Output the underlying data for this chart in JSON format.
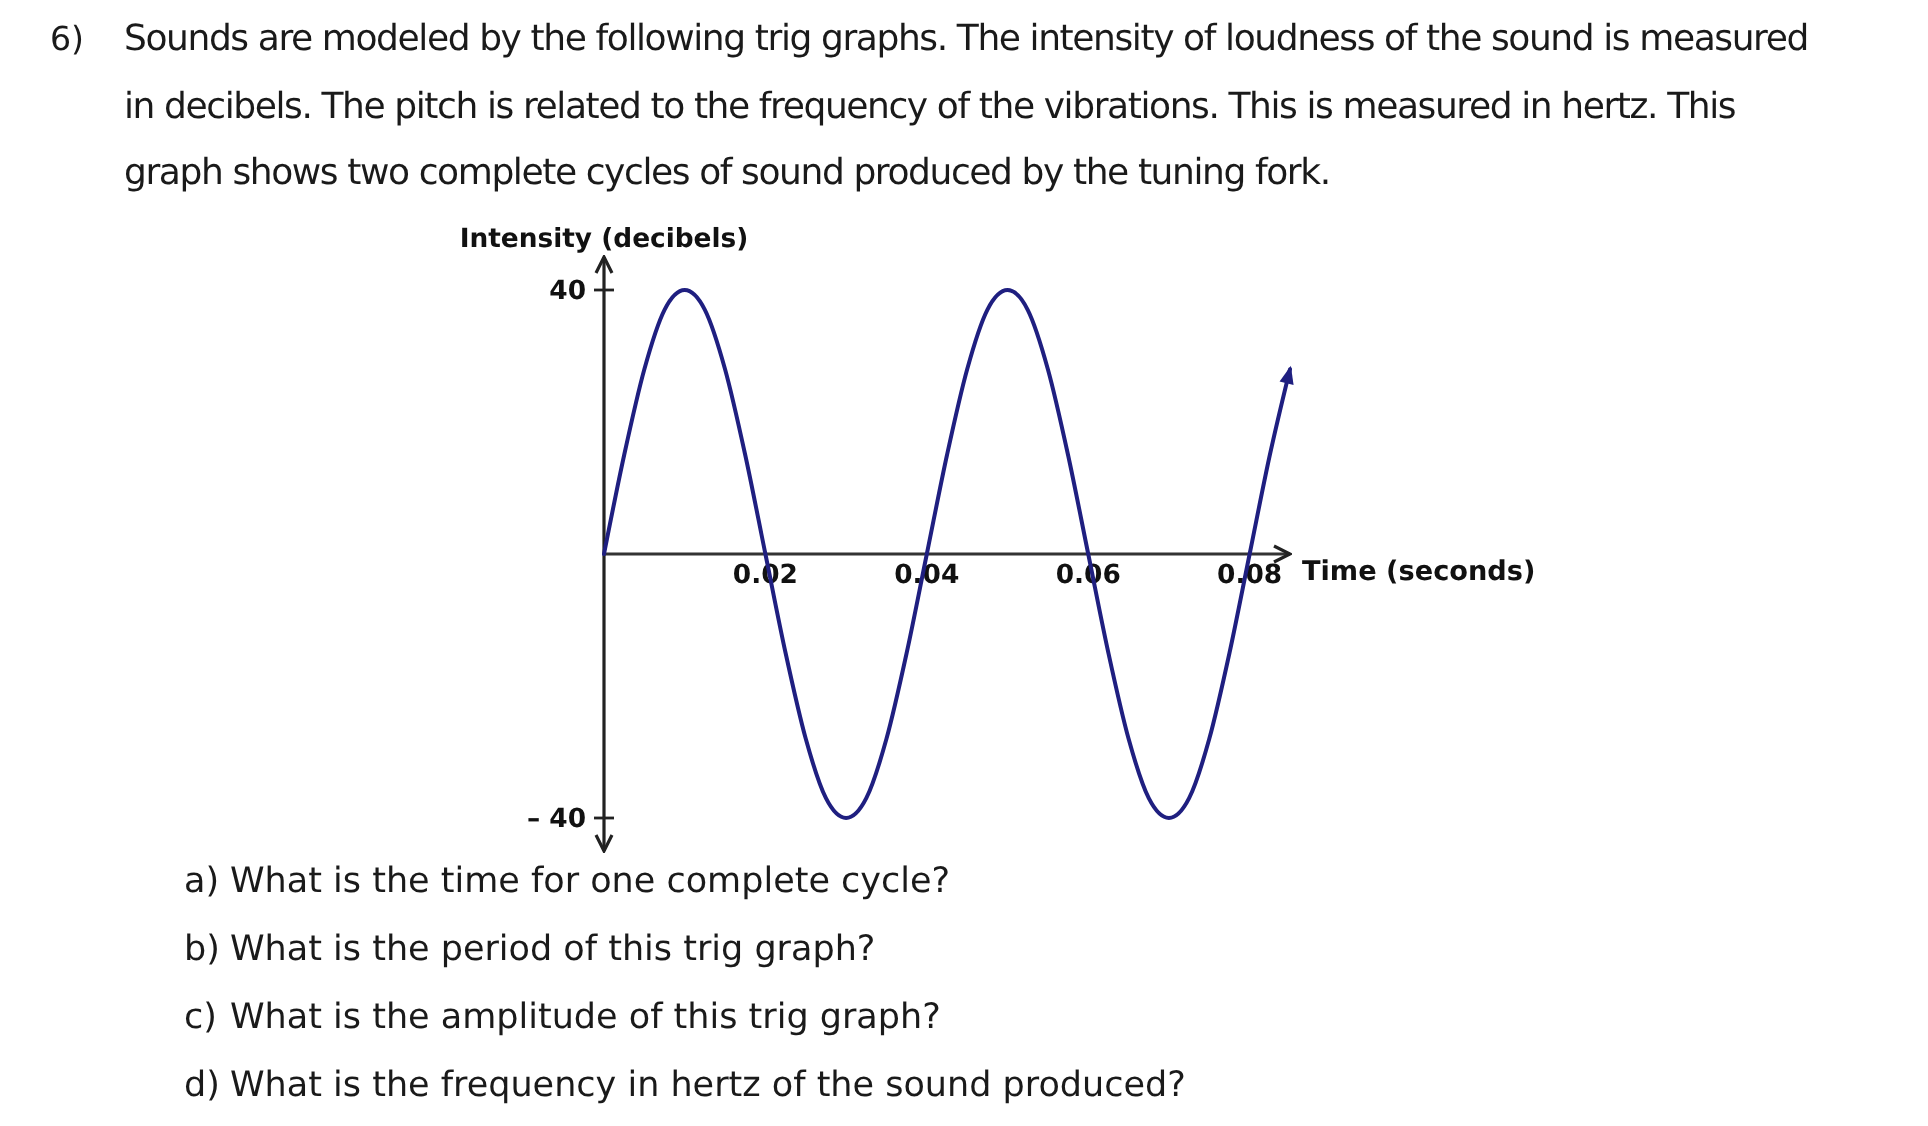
{
  "chart_data": {
    "type": "line",
    "title": "6) Sounds are modeled by the following trig graphs. The intensity of loudness of the sound is measured in decibels. The pitch is related to the frequency of the vibrations. This is measured in hertz. This graph shows two complete cycles of sound produced by the tuning fork.",
    "xlabel": "Time (seconds)",
    "ylabel": "Intensity (decibels)",
    "annotations": [
      "a) What is the time for one complete cycle?",
      "b) What is the period of this trig graph?",
      "c) What is the amplitude of this trig graph?",
      "d) What is the frequency in hertz of the sound produced?"
    ],
    "x": [
      0,
      0.0025,
      0.005,
      0.0075,
      0.01,
      0.0125,
      0.015,
      0.0175,
      0.02,
      0.0225,
      0.025,
      0.0275,
      0.03,
      0.0325,
      0.035,
      0.0375,
      0.04,
      0.0425,
      0.045,
      0.0475,
      0.05,
      0.0525,
      0.055,
      0.0575,
      0.06,
      0.0625,
      0.065,
      0.0675,
      0.07,
      0.0725,
      0.075,
      0.0775,
      0.08,
      0.0825,
      0.085
    ],
    "series": [
      {
        "color": "#1f1f80",
        "values": [
          0,
          15,
          28,
          37,
          40,
          37,
          28,
          15,
          0,
          -15,
          -28,
          -37,
          -40,
          -37,
          -28,
          -15,
          0,
          15,
          28,
          37,
          40,
          37,
          28,
          15,
          0,
          -15,
          -28,
          -37,
          -40,
          -37,
          -28,
          -15,
          0,
          15,
          28
        ]
      }
    ],
    "xlim": [
      0,
      0.085
    ],
    "ylim": [
      -45,
      45
    ],
    "xticks": [
      0.02,
      0.04,
      0.06,
      0.08
    ],
    "yticks": [
      40,
      {
        "value": -40,
        "label": "– 40"
      }
    ]
  }
}
